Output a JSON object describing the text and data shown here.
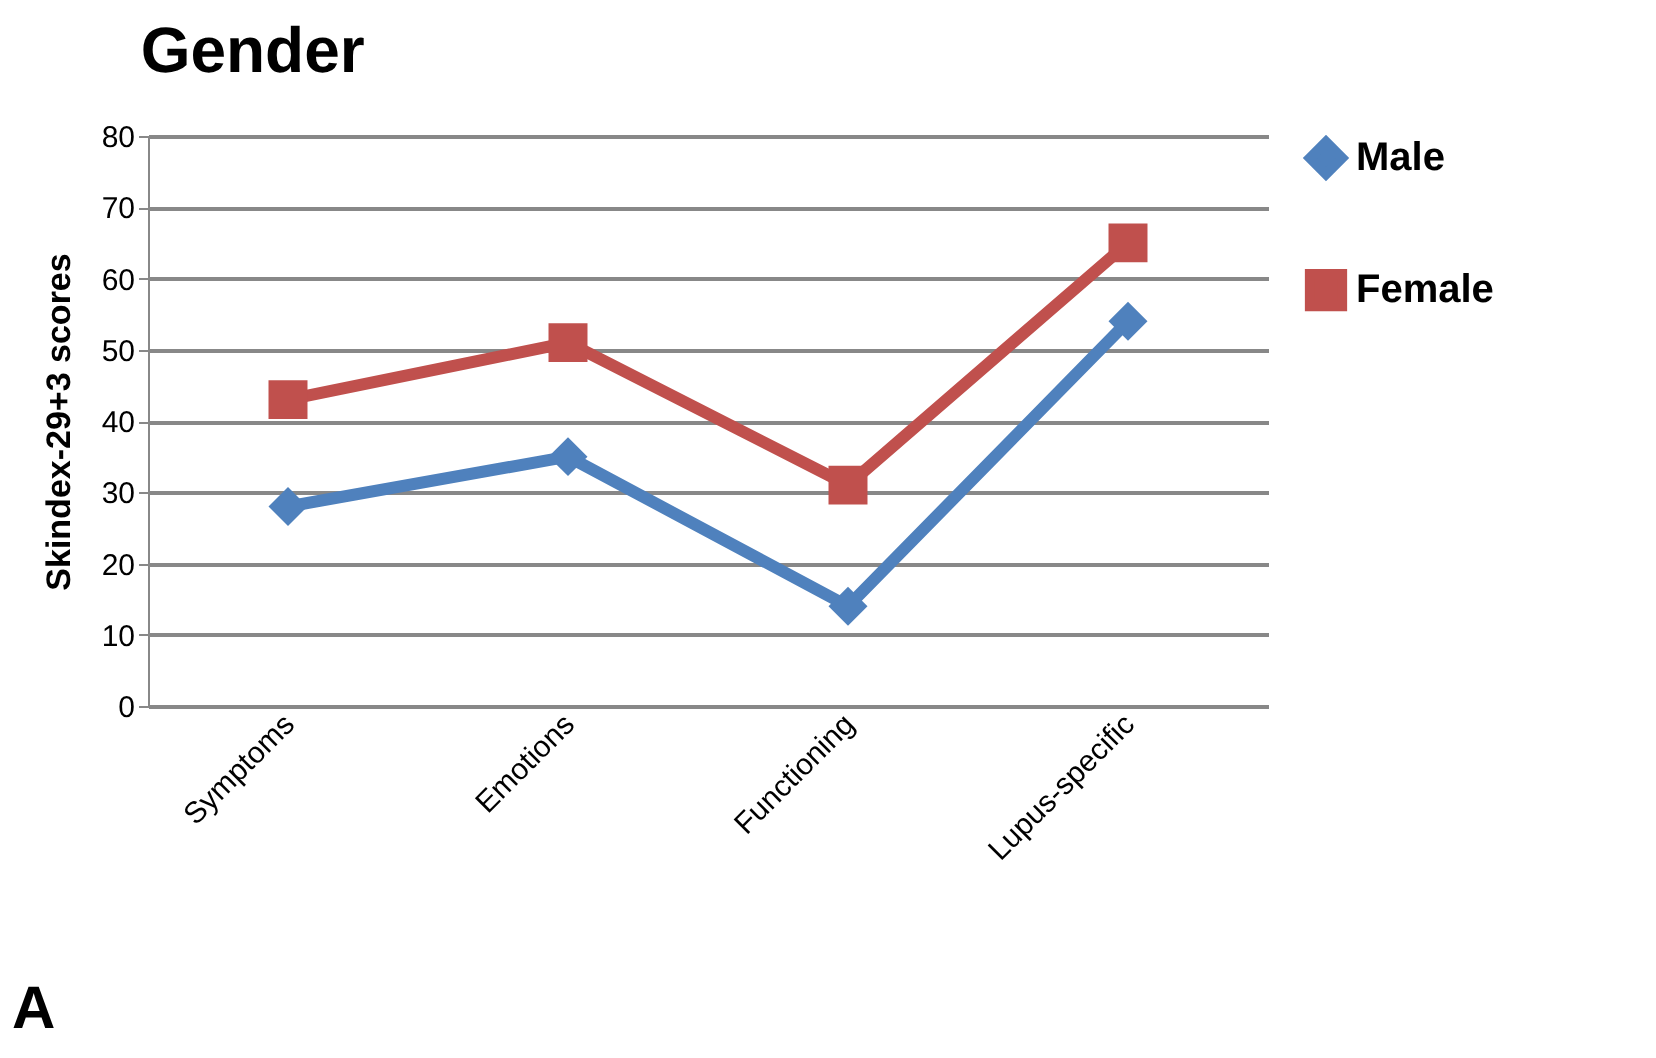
{
  "chart_data": {
    "type": "line",
    "title": "Gender",
    "ylabel": "Skindex-29+3 scores",
    "categories": [
      "Symptoms",
      "Emotions",
      "Functioning",
      "Lupus-specific"
    ],
    "series": [
      {
        "name": "Male",
        "color": "#4f81bd",
        "marker": "diamond",
        "values": [
          28,
          35,
          14,
          54
        ]
      },
      {
        "name": "Female",
        "color": "#c0504d",
        "marker": "square",
        "values": [
          43,
          51,
          31,
          65
        ]
      }
    ],
    "ylim": [
      0,
      80
    ],
    "yticks": [
      0,
      10,
      20,
      30,
      40,
      50,
      60,
      70,
      80
    ],
    "grid": "y",
    "legend": "right",
    "line_style": "solid",
    "annotations": [
      "A"
    ]
  }
}
